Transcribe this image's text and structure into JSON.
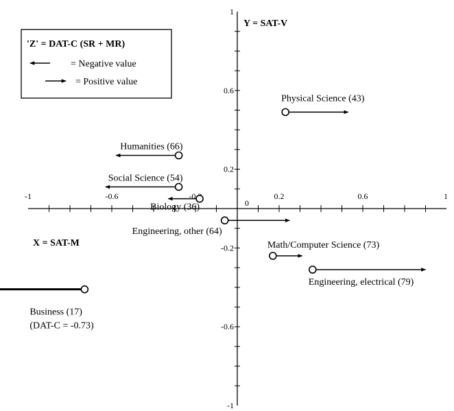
{
  "chart_data": {
    "type": "scatter",
    "x_axis": {
      "label": "X = SAT-M",
      "range": [
        -1,
        1
      ],
      "tick_labels": [
        {
          "value": -1,
          "text": "-1"
        },
        {
          "value": -0.6,
          "text": "-0.6"
        },
        {
          "value": -0.2,
          "text": "-0.2"
        },
        {
          "value": 0,
          "text": "0"
        },
        {
          "value": 0.2,
          "text": "0.2"
        },
        {
          "value": 0.6,
          "text": "0.6"
        },
        {
          "value": 1,
          "text": "1"
        }
      ],
      "minor_ticks": [
        -0.9,
        -0.8,
        -0.7,
        -0.6,
        -0.5,
        -0.4,
        -0.3,
        -0.2,
        -0.1,
        0.1,
        0.2,
        0.3,
        0.4,
        0.5,
        0.6,
        0.7,
        0.8,
        0.9
      ]
    },
    "y_axis": {
      "label": "Y = SAT-V",
      "range": [
        -1,
        1
      ],
      "tick_labels": [
        {
          "value": 1,
          "text": "1"
        },
        {
          "value": 0.6,
          "text": "0.6"
        },
        {
          "value": 0.2,
          "text": "0.2"
        },
        {
          "value": -0.2,
          "text": "-0.2"
        },
        {
          "value": -0.6,
          "text": "-0.6"
        },
        {
          "value": -1,
          "text": "-1"
        }
      ],
      "minor_ticks": [
        -0.9,
        -0.8,
        -0.7,
        -0.6,
        -0.5,
        -0.4,
        -0.3,
        -0.2,
        -0.1,
        0.1,
        0.2,
        0.3,
        0.4,
        0.5,
        0.6,
        0.7,
        0.8,
        0.9
      ]
    },
    "legend": {
      "title": "'Z' = DAT-C (SR + MR)",
      "placement": "top-left",
      "entries": [
        {
          "direction": "left",
          "text": "= Negative value"
        },
        {
          "direction": "right",
          "text": "= Positive value"
        }
      ]
    },
    "points": [
      {
        "label": "Physical Science (43)",
        "x": 0.23,
        "y": 0.49,
        "z": 0.3,
        "label_pos": "above"
      },
      {
        "label": "Humanities (66)",
        "x": -0.28,
        "y": 0.27,
        "z": -0.3,
        "label_pos": "above-left"
      },
      {
        "label": "Social Science (54)",
        "x": -0.28,
        "y": 0.11,
        "z": -0.35,
        "label_pos": "above-left"
      },
      {
        "label": "Biology (36)",
        "x": -0.18,
        "y": 0.05,
        "z": -0.15,
        "label_pos": "below-left"
      },
      {
        "label": "Engineering, other (64)",
        "x": -0.06,
        "y": -0.06,
        "z": 0.31,
        "label_pos": "below-left"
      },
      {
        "label": "Math/Computer Science (73)",
        "x": 0.17,
        "y": -0.24,
        "z": 0.14,
        "label_pos": "above-right"
      },
      {
        "label": "Engineering, electrical (79)",
        "x": 0.36,
        "y": -0.31,
        "z": 0.54,
        "label_pos": "below-right"
      },
      {
        "label": "Business (17)",
        "x": -0.73,
        "y": -0.41,
        "z": -0.73,
        "label_pos": "below",
        "note": "(DAT-C = -0.73)"
      }
    ]
  }
}
